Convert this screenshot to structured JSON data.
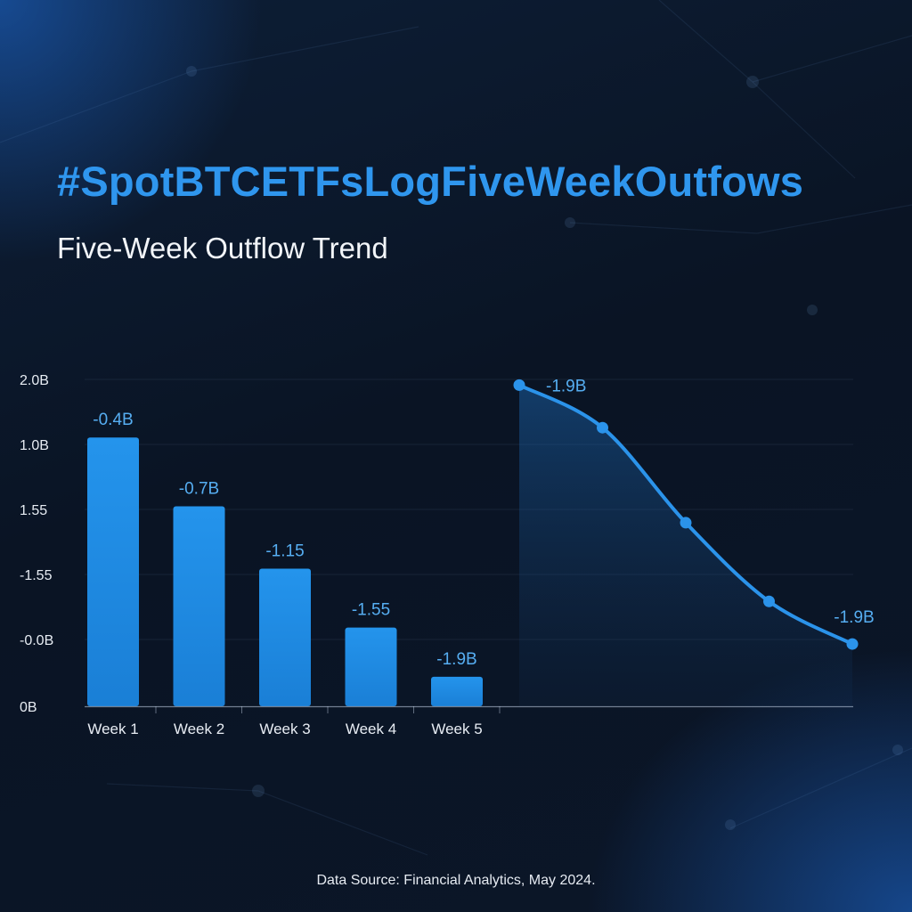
{
  "title": "#SpotBTCETFsLogFiveWeekOutfows",
  "subtitle": "Five-Week Outflow Trend",
  "source": "Data Source: Financial Analytics, May 2024.",
  "colors": {
    "accent": "#2f96ee",
    "bar": "#1f8ae3",
    "line": "#2b93ea",
    "background": "#0b1628"
  },
  "chart_data": [
    {
      "type": "bar",
      "y_tick_labels": [
        "2.0B",
        "1.0B",
        "1.55",
        "-1.55",
        "-0.0B",
        "0B"
      ],
      "categories": [
        "Week 1",
        "Week 2",
        "Week 3",
        "Week 4",
        "Week 5"
      ],
      "bar_level_fraction": [
        0.82,
        0.61,
        0.42,
        0.24,
        0.09
      ],
      "data_labels": [
        "-0.4B",
        "-0.7B",
        "-1.15",
        "-1.55",
        "-1.9B"
      ],
      "grid": true
    },
    {
      "type": "area",
      "points": 5,
      "level_fraction": [
        0.98,
        0.85,
        0.56,
        0.32,
        0.19
      ],
      "data_labels": [
        "-1.9B",
        "",
        "",
        "",
        "-1.9B"
      ],
      "grid": true
    }
  ]
}
